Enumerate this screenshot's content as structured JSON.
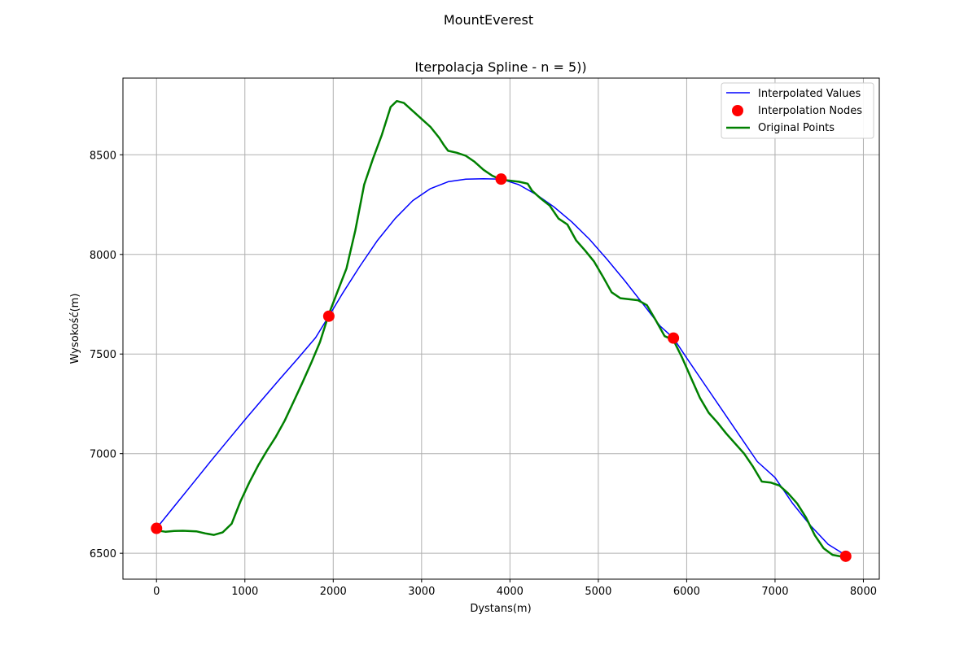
{
  "figure_title": "MountEverest",
  "chart_data": {
    "type": "line",
    "title": "Iterpolacja Spline - n = 5))",
    "xlabel": "Dystans(m)",
    "ylabel": "Wysokość(m)",
    "xlim": [
      -380,
      8180
    ],
    "ylim": [
      6370,
      8885
    ],
    "xticks": [
      0,
      1000,
      2000,
      3000,
      4000,
      5000,
      6000,
      7000,
      8000
    ],
    "yticks": [
      6500,
      7000,
      7500,
      8000,
      8500
    ],
    "grid": true,
    "legend_position": "top-right",
    "legend": [
      {
        "label": "Interpolated Values",
        "kind": "line",
        "color": "#0000ff"
      },
      {
        "label": "Interpolation Nodes",
        "kind": "marker",
        "color": "#ff0000"
      },
      {
        "label": "Original Points",
        "kind": "line",
        "color": "#008000"
      }
    ],
    "series": [
      {
        "key": "interpolated",
        "style": "line",
        "color": "#0000ff",
        "x": [
          0,
          200,
          400,
          600,
          800,
          1000,
          1200,
          1400,
          1600,
          1800,
          1950,
          2100,
          2300,
          2500,
          2700,
          2900,
          3100,
          3300,
          3500,
          3700,
          3900,
          4100,
          4300,
          4500,
          4700,
          4900,
          5100,
          5300,
          5500,
          5700,
          5850,
          6000,
          6200,
          6400,
          6600,
          6800,
          7000,
          7200,
          7400,
          7600,
          7800
        ],
        "y": [
          6625,
          6735,
          6845,
          6955,
          7063,
          7170,
          7274,
          7377,
          7478,
          7582,
          7690,
          7800,
          7940,
          8070,
          8180,
          8270,
          8330,
          8365,
          8378,
          8380,
          8378,
          8350,
          8300,
          8238,
          8163,
          8076,
          7975,
          7868,
          7755,
          7640,
          7580,
          7480,
          7350,
          7220,
          7090,
          6960,
          6880,
          6750,
          6640,
          6545,
          6490
        ]
      },
      {
        "key": "nodes",
        "style": "marker",
        "color": "#ff0000",
        "x": [
          0,
          1950,
          3900,
          5850,
          7800
        ],
        "y": [
          6625,
          7690,
          8378,
          7580,
          6485
        ]
      },
      {
        "key": "original",
        "style": "line",
        "color": "#008000",
        "x": [
          0,
          100,
          200,
          300,
          450,
          550,
          650,
          750,
          850,
          950,
          1050,
          1150,
          1250,
          1350,
          1450,
          1550,
          1650,
          1750,
          1850,
          1950,
          2050,
          2150,
          2250,
          2350,
          2450,
          2550,
          2650,
          2720,
          2800,
          2900,
          3000,
          3100,
          3200,
          3250,
          3300,
          3400,
          3500,
          3600,
          3700,
          3800,
          3900,
          4000,
          4100,
          4200,
          4250,
          4350,
          4450,
          4550,
          4650,
          4750,
          4850,
          4950,
          5050,
          5150,
          5250,
          5350,
          5450,
          5550,
          5650,
          5750,
          5850,
          5950,
          6050,
          6150,
          6250,
          6350,
          6450,
          6550,
          6650,
          6750,
          6850,
          6950,
          7050,
          7150,
          7250,
          7350,
          7450,
          7550,
          7650,
          7750,
          7800
        ],
        "y": [
          6615,
          6608,
          6612,
          6613,
          6610,
          6600,
          6592,
          6605,
          6648,
          6760,
          6855,
          6940,
          7015,
          7085,
          7165,
          7260,
          7355,
          7455,
          7560,
          7700,
          7815,
          7930,
          8120,
          8350,
          8480,
          8600,
          8740,
          8770,
          8760,
          8720,
          8680,
          8640,
          8585,
          8550,
          8520,
          8510,
          8495,
          8465,
          8425,
          8395,
          8375,
          8370,
          8365,
          8355,
          8320,
          8280,
          8245,
          8180,
          8150,
          8070,
          8020,
          7965,
          7890,
          7810,
          7780,
          7775,
          7770,
          7745,
          7670,
          7590,
          7570,
          7480,
          7380,
          7280,
          7205,
          7155,
          7100,
          7050,
          7000,
          6935,
          6860,
          6855,
          6840,
          6800,
          6750,
          6680,
          6590,
          6525,
          6492,
          6484,
          6485
        ]
      }
    ]
  }
}
